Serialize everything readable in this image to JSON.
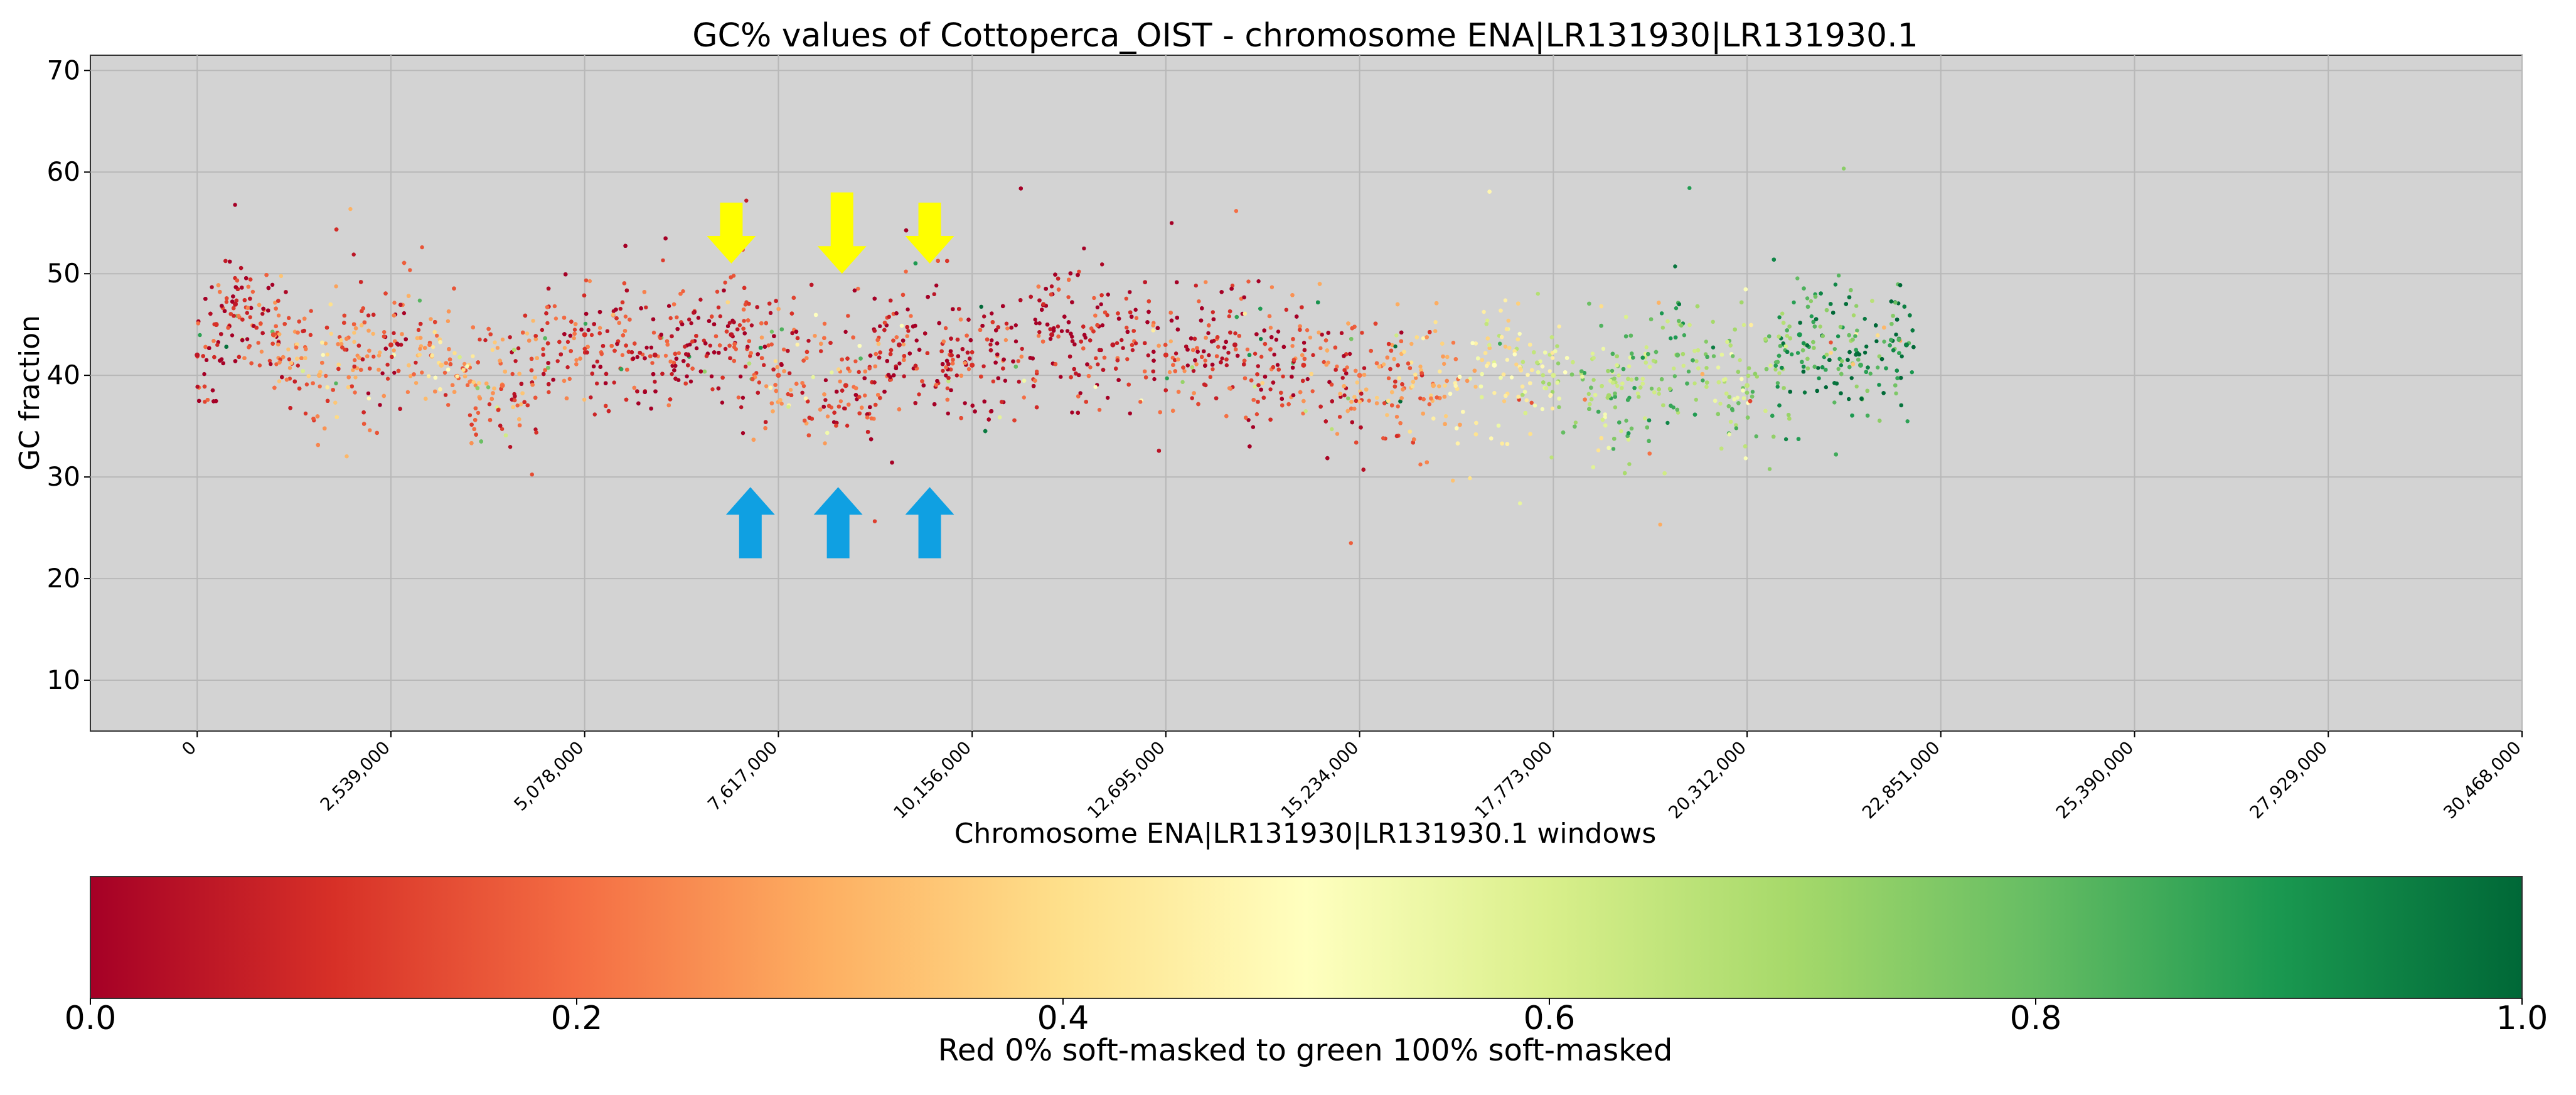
{
  "chart_data": {
    "type": "scatter",
    "title": "GC% values of Cottoperca_OIST - chromosome ENA|LR131930|LR131930.1",
    "xlabel": "Chromosome ENA|LR131930|LR131930.1 windows",
    "ylabel": "GC fraction",
    "xlim": [
      -1400000,
      30468000
    ],
    "ylim": [
      5,
      71.5
    ],
    "x_ticks": [
      0,
      2539000,
      5078000,
      7617000,
      10156000,
      12695000,
      15234000,
      17773000,
      20312000,
      22851000,
      25390000,
      27929000,
      30468000
    ],
    "x_tick_labels": [
      "0",
      "2,539,000",
      "5,078,000",
      "7,617,000",
      "10,156,000",
      "12,695,000",
      "15,234,000",
      "17,773,000",
      "20,312,000",
      "22,851,000",
      "25,390,000",
      "27,929,000",
      "30,468,000"
    ],
    "y_ticks": [
      10,
      20,
      30,
      40,
      50,
      60,
      70
    ],
    "y_tick_labels": [
      "10",
      "20",
      "30",
      "40",
      "50",
      "60",
      "70"
    ],
    "grid": true,
    "color_variable": "soft-masked fraction",
    "colormap": "RdYlGn",
    "colormap_stops": [
      "#a50026",
      "#d73027",
      "#f46d43",
      "#fdae61",
      "#fee08b",
      "#ffffbf",
      "#d9ef8b",
      "#a6d96a",
      "#66bd63",
      "#1a9850",
      "#006837"
    ],
    "plot_background": "#d3d3d3",
    "data_summary": {
      "x_range": [
        0,
        22500000
      ],
      "y_band_center": 41,
      "y_typical_range": [
        32,
        52
      ],
      "mask_fraction_trend": "mostly 0-0.2 (red) up to ~15,000,000, increasingly 0.6-1.0 (green) from ~16,000,000 to 22,500,000"
    },
    "points": [
      {
        "x": 0,
        "y": 42,
        "c": 0.05
      },
      {
        "x": 250000,
        "y": 45,
        "c": 0.1
      },
      {
        "x": 500000,
        "y": 47,
        "c": 0.05
      },
      {
        "x": 1000000,
        "y": 44,
        "c": 0.15
      },
      {
        "x": 1600000,
        "y": 40,
        "c": 0.3
      },
      {
        "x": 2539000,
        "y": 43,
        "c": 0.1
      },
      {
        "x": 3200000,
        "y": 41,
        "c": 0.35
      },
      {
        "x": 4000000,
        "y": 39,
        "c": 0.2
      },
      {
        "x": 5078000,
        "y": 44,
        "c": 0.1
      },
      {
        "x": 6000000,
        "y": 42,
        "c": 0.05
      },
      {
        "x": 7000000,
        "y": 44,
        "c": 0.05
      },
      {
        "x": 7617000,
        "y": 40,
        "c": 0.15
      },
      {
        "x": 8500000,
        "y": 39,
        "c": 0.1
      },
      {
        "x": 9200000,
        "y": 43,
        "c": 0.05
      },
      {
        "x": 10156000,
        "y": 41,
        "c": 0.1
      },
      {
        "x": 11200000,
        "y": 44,
        "c": 0.05
      },
      {
        "x": 12000000,
        "y": 43,
        "c": 0.05
      },
      {
        "x": 12695000,
        "y": 42,
        "c": 0.1
      },
      {
        "x": 13600000,
        "y": 43,
        "c": 0.05
      },
      {
        "x": 14500000,
        "y": 41,
        "c": 0.1
      },
      {
        "x": 15234000,
        "y": 40,
        "c": 0.2
      },
      {
        "x": 16200000,
        "y": 39,
        "c": 0.3
      },
      {
        "x": 17000000,
        "y": 41,
        "c": 0.5
      },
      {
        "x": 17773000,
        "y": 40,
        "c": 0.6
      },
      {
        "x": 18500000,
        "y": 38,
        "c": 0.7
      },
      {
        "x": 19400000,
        "y": 42,
        "c": 0.8
      },
      {
        "x": 20312000,
        "y": 39,
        "c": 0.65
      },
      {
        "x": 21000000,
        "y": 44,
        "c": 0.9
      },
      {
        "x": 21800000,
        "y": 41,
        "c": 0.85
      },
      {
        "x": 22400000,
        "y": 43,
        "c": 0.95
      }
    ],
    "annotations": [
      {
        "type": "arrow-down",
        "color": "#ffff00",
        "x": 7000000,
        "y_from": 57,
        "y_to": 51
      },
      {
        "type": "arrow-down",
        "color": "#ffff00",
        "x": 8450000,
        "y_from": 58,
        "y_to": 50
      },
      {
        "type": "arrow-down",
        "color": "#ffff00",
        "x": 9600000,
        "y_from": 57,
        "y_to": 51
      },
      {
        "type": "arrow-up",
        "color": "#0fa0e2",
        "x": 7250000,
        "y_from": 22,
        "y_to": 29
      },
      {
        "type": "arrow-up",
        "color": "#0fa0e2",
        "x": 8400000,
        "y_from": 22,
        "y_to": 29
      },
      {
        "type": "arrow-up",
        "color": "#0fa0e2",
        "x": 9600000,
        "y_from": 22,
        "y_to": 29
      }
    ],
    "colorbar": {
      "label": "Red 0% soft-masked to green 100% soft-masked",
      "ticks": [
        0.0,
        0.2,
        0.4,
        0.6,
        0.8,
        1.0
      ],
      "tick_labels": [
        "0.0",
        "0.2",
        "0.4",
        "0.6",
        "0.8",
        "1.0"
      ],
      "range": [
        0.0,
        1.0
      ]
    }
  }
}
